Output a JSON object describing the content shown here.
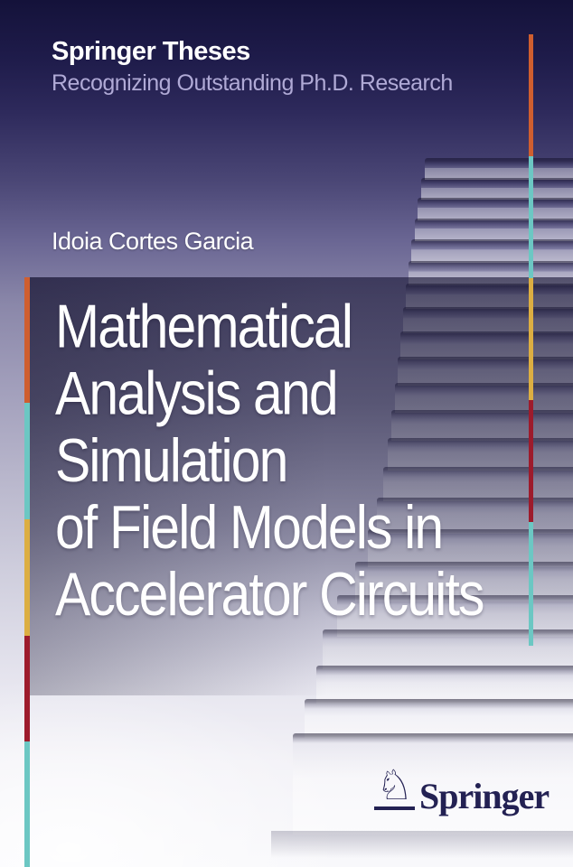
{
  "cover": {
    "series_title": "Springer Theses",
    "series_subtitle": "Recognizing Outstanding Ph.D. Research",
    "author": "Idoia Cortes Garcia",
    "title_lines": [
      "Mathematical",
      "Analysis and",
      "Simulation",
      "of Field Models in",
      "Accelerator Circuits"
    ],
    "publisher": {
      "name": "Springer",
      "logo_icon": "springer-knight-icon",
      "logo_glyph": "♘"
    },
    "colors": {
      "top_navy": "#17143f",
      "mid_lavender": "#8d8aab",
      "panel_slate": "#3c3a5e",
      "stair_white": "#f4f3f8",
      "accent_orange": "#cf5e2f",
      "accent_teal": "#6cc7c3",
      "accent_yellow": "#dcae42",
      "accent_dark_red": "#9d1b2c",
      "logo_navy": "#232153",
      "subtitle_lavender": "#b0aad6"
    },
    "edge_bars": {
      "left_segments": [
        "accent_orange",
        "accent_teal",
        "accent_yellow",
        "accent_dark_red",
        "accent_teal"
      ],
      "right_segments": [
        "accent_orange",
        "accent_teal",
        "accent_yellow",
        "accent_dark_red",
        "accent_teal"
      ]
    }
  }
}
